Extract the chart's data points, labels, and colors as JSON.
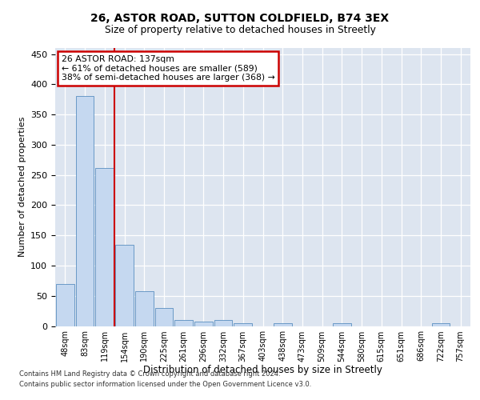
{
  "title_line1": "26, ASTOR ROAD, SUTTON COLDFIELD, B74 3EX",
  "title_line2": "Size of property relative to detached houses in Streetly",
  "xlabel": "Distribution of detached houses by size in Streetly",
  "ylabel": "Number of detached properties",
  "bins": [
    "48sqm",
    "83sqm",
    "119sqm",
    "154sqm",
    "190sqm",
    "225sqm",
    "261sqm",
    "296sqm",
    "332sqm",
    "367sqm",
    "403sqm",
    "438sqm",
    "473sqm",
    "509sqm",
    "544sqm",
    "580sqm",
    "615sqm",
    "651sqm",
    "686sqm",
    "722sqm",
    "757sqm"
  ],
  "values": [
    70,
    380,
    262,
    135,
    58,
    30,
    10,
    7,
    10,
    5,
    0,
    4,
    0,
    0,
    4,
    0,
    0,
    0,
    0,
    4,
    0
  ],
  "bar_color": "#c5d8f0",
  "bar_edge_color": "#5a8fc0",
  "marker_line_color": "#cc0000",
  "annotation_line1": "26 ASTOR ROAD: 137sqm",
  "annotation_line2": "← 61% of detached houses are smaller (589)",
  "annotation_line3": "38% of semi-detached houses are larger (368) →",
  "annotation_box_color": "#cc0000",
  "footer_line1": "Contains HM Land Registry data © Crown copyright and database right 2024.",
  "footer_line2": "Contains public sector information licensed under the Open Government Licence v3.0.",
  "ylim": [
    0,
    460
  ],
  "yticks": [
    0,
    50,
    100,
    150,
    200,
    250,
    300,
    350,
    400,
    450
  ],
  "background_color": "#dde5f0",
  "grid_color": "#ffffff"
}
